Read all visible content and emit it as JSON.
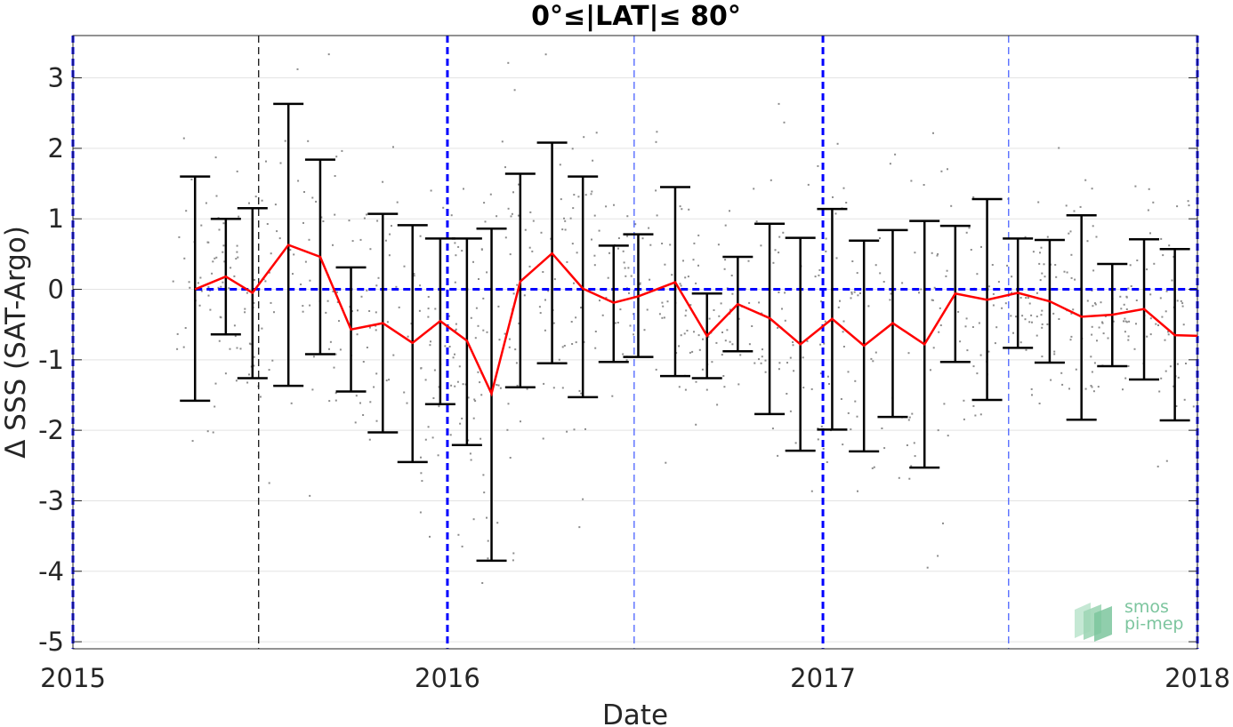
{
  "chart_data": {
    "type": "line",
    "title": "0°≤|LAT|≤ 80°",
    "xlabel": "Date",
    "ylabel": "Δ SSS (SAT-Argo)",
    "xlim": [
      "2015-01-01",
      "2018-01-01"
    ],
    "ylim": [
      -5.1,
      3.6
    ],
    "x_ticks": [
      "2015",
      "2016",
      "2017",
      "2018"
    ],
    "y_ticks": [
      3,
      2,
      1,
      0,
      -1,
      -2,
      -3,
      -4,
      -5
    ],
    "y_tick_labels": [
      "3",
      "2",
      "1",
      "0",
      "-1",
      "-2",
      "-3",
      "-4",
      "-5"
    ],
    "grid": true,
    "zero_line": 0,
    "year_boundaries": [
      "2015-01-01",
      "2016-01-01",
      "2017-01-01",
      "2018-01-01"
    ],
    "half_year_lines": [
      "2015-07-01",
      "2016-07-01",
      "2017-07-01"
    ],
    "series": [
      {
        "x": [
          "2015-04-30",
          "2015-05-30",
          "2015-06-25",
          "2015-07-30",
          "2015-08-30",
          "2015-09-29",
          "2015-10-30",
          "2015-11-28",
          "2015-12-25",
          "2016-01-20",
          "2016-02-13",
          "2016-03-12",
          "2016-04-12",
          "2016-05-12",
          "2016-06-11",
          "2016-07-05",
          "2016-08-10",
          "2016-09-10",
          "2016-10-10",
          "2016-11-10",
          "2016-12-10",
          "2017-01-10",
          "2017-02-10",
          "2017-03-10",
          "2017-04-10",
          "2017-05-10",
          "2017-06-10",
          "2017-07-10",
          "2017-08-10",
          "2017-09-10",
          "2017-10-10",
          "2017-11-10",
          "2017-12-10",
          "2018-01-01"
        ],
        "mean": [
          0.0,
          0.18,
          -0.05,
          0.63,
          0.46,
          -0.57,
          -0.48,
          -0.76,
          -0.45,
          -0.73,
          -1.48,
          0.11,
          0.51,
          0.01,
          -0.19,
          -0.1,
          0.1,
          -0.66,
          -0.21,
          -0.41,
          -0.78,
          -0.42,
          -0.8,
          -0.48,
          -0.78,
          -0.06,
          -0.15,
          -0.05,
          -0.17,
          -0.39,
          -0.36,
          -0.28,
          -0.65,
          -0.66
        ],
        "lower": [
          -1.58,
          -0.64,
          -1.26,
          -1.37,
          -0.92,
          -1.45,
          -2.03,
          -2.45,
          -1.63,
          -2.21,
          -3.85,
          -1.39,
          -1.05,
          -1.53,
          -1.03,
          -0.96,
          -1.23,
          -1.26,
          -0.88,
          -1.77,
          -2.29,
          -1.99,
          -2.3,
          -1.81,
          -2.53,
          -1.03,
          -1.57,
          -0.83,
          -1.04,
          -1.85,
          -1.09,
          -1.28,
          -1.86,
          null
        ],
        "upper": [
          1.6,
          1.0,
          1.15,
          2.63,
          1.84,
          0.31,
          1.07,
          0.91,
          0.72,
          0.72,
          0.86,
          1.64,
          2.08,
          1.6,
          0.62,
          0.78,
          1.45,
          -0.06,
          0.46,
          0.93,
          0.73,
          1.14,
          0.69,
          0.84,
          0.97,
          0.9,
          1.28,
          0.72,
          0.7,
          1.05,
          0.36,
          0.71,
          0.57,
          null
        ]
      }
    ],
    "scatter_note_points": 900
  },
  "logo": {
    "line1": "smos",
    "line2": "pi-mep"
  },
  "colors": {
    "mean_line": "#ff0000",
    "error_bars": "#000000",
    "reference_lines": "#0000ff",
    "points": "#8c8c8c",
    "logo": "#7cc59e"
  }
}
